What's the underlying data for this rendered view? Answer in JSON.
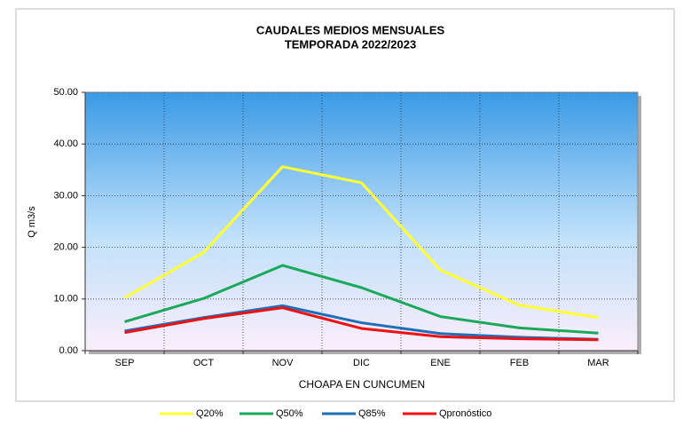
{
  "chart_data": {
    "type": "line",
    "title": "CAUDALES MEDIOS MENSUALES",
    "subtitle": "TEMPORADA 2022/2023",
    "x_label": "CHOAPA EN CUNCUMEN",
    "y_label": "Q m3/s",
    "categories": [
      "SEP",
      "OCT",
      "NOV",
      "DIC",
      "ENE",
      "FEB",
      "MAR"
    ],
    "series": [
      {
        "name": "Q20%",
        "color": "#ffff33",
        "values": [
          10.2,
          19.0,
          35.6,
          32.5,
          15.6,
          8.8,
          6.4
        ]
      },
      {
        "name": "Q50%",
        "color": "#1aa85a",
        "values": [
          5.6,
          10.1,
          16.5,
          12.2,
          6.6,
          4.4,
          3.4
        ]
      },
      {
        "name": "Q85%",
        "color": "#1f6fb8",
        "values": [
          3.8,
          6.4,
          8.7,
          5.4,
          3.3,
          2.6,
          2.2
        ]
      },
      {
        "name": "Qpronóstico",
        "color": "#ee1111",
        "values": [
          3.5,
          6.2,
          8.3,
          4.3,
          2.7,
          2.3,
          2.1
        ]
      }
    ],
    "ylim": [
      0,
      50
    ],
    "yticks": [
      {
        "value": 0,
        "label": "0.00"
      },
      {
        "value": 10,
        "label": "10.00"
      },
      {
        "value": 20,
        "label": "20.00"
      },
      {
        "value": 30,
        "label": "30.00"
      },
      {
        "value": 40,
        "label": "40.00"
      },
      {
        "value": 50,
        "label": "50.00"
      }
    ],
    "grid": true,
    "legend": "bottom"
  }
}
